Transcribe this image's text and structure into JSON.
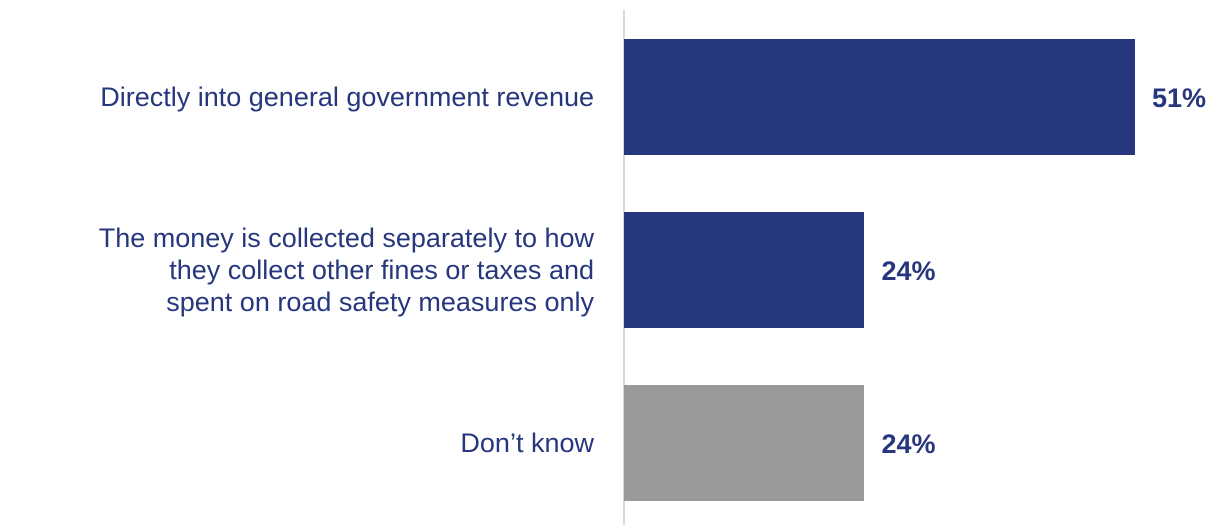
{
  "chart_data": {
    "type": "bar",
    "orientation": "horizontal",
    "categories": [
      "Directly into general government revenue",
      "The money is collected separately to how\nthey collect other fines or taxes and\nspent on road safety measures only",
      "Don’t know"
    ],
    "values": [
      51,
      24,
      24
    ],
    "value_labels": [
      "51%",
      "24%",
      "24%"
    ],
    "colors": [
      "#27377e",
      "#27377e",
      "#999999"
    ],
    "xlim": [
      0,
      51
    ],
    "grid": false,
    "legend": "none"
  }
}
